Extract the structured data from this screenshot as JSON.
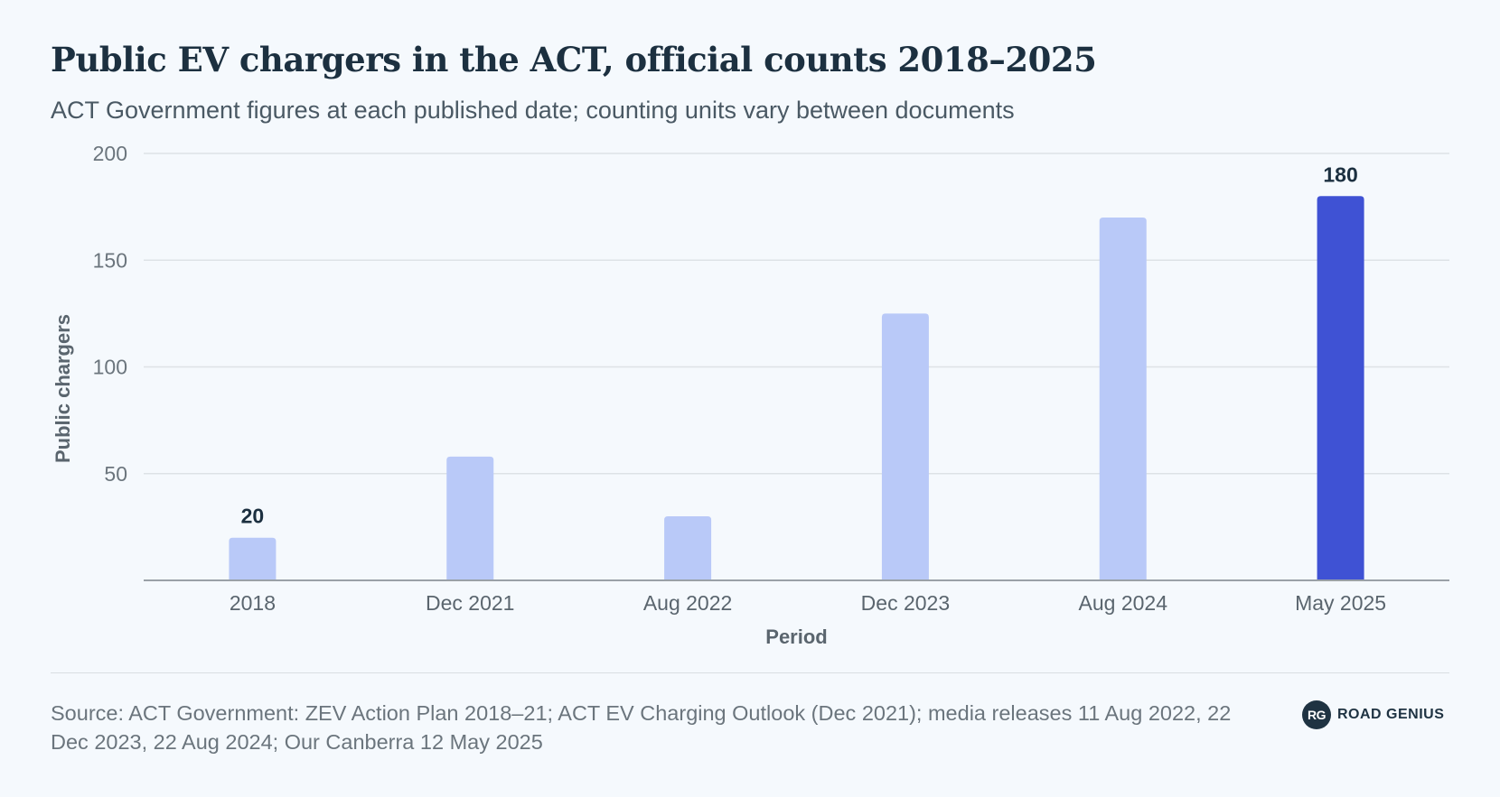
{
  "title": "Public EV chargers in the ACT, official counts 2018–2025",
  "subtitle": "ACT Government figures at each published date; counting units vary between documents",
  "source": "Source: ACT Government: ZEV Action Plan 2018–21; ACT EV Charging Outlook (Dec 2021); media releases 11 Aug 2022, 22 Dec 2023, 22 Aug 2024; Our Canberra 12 May 2025",
  "logo": {
    "mark": "RG",
    "text": "ROAD GENIUS",
    "icon": "road-genius-logo"
  },
  "colors": {
    "bar": "#b9c9f8",
    "highlight": "#3f52d4",
    "grid": "#dde2e6",
    "axis": "#9aa1a7"
  },
  "chart_data": {
    "type": "bar",
    "categories": [
      "2018",
      "Dec 2021",
      "Aug 2022",
      "Dec 2023",
      "Aug 2024",
      "May 2025"
    ],
    "values": [
      20,
      58,
      30,
      125,
      170,
      180
    ],
    "highlight_index": 5,
    "data_labels": [
      {
        "index": 0,
        "text": "20"
      },
      {
        "index": 5,
        "text": "180"
      }
    ],
    "xlabel": "Period",
    "ylabel": "Public chargers",
    "ylim": [
      0,
      200
    ],
    "yticks": [
      50,
      100,
      150,
      200
    ],
    "grid": true,
    "legend": "none"
  }
}
